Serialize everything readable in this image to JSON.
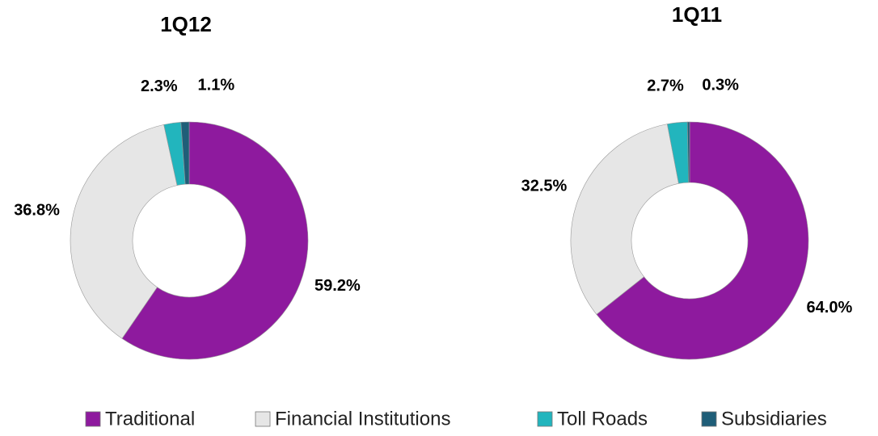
{
  "chart_data": [
    {
      "type": "pie",
      "title": "1Q12",
      "categories": [
        "Traditional",
        "Financial Institutions",
        "Toll Roads",
        "Subsidiaries"
      ],
      "values": [
        59.2,
        36.8,
        2.3,
        1.1
      ],
      "value_labels": [
        "59.2%",
        "36.8%",
        "2.3%",
        "1.1%"
      ],
      "colors": [
        "#8e1a9e",
        "#e6e6e6",
        "#22b5bd",
        "#1f5e78"
      ]
    },
    {
      "type": "pie",
      "title": "1Q11",
      "categories": [
        "Traditional",
        "Financial Institutions",
        "Toll Roads",
        "Subsidiaries"
      ],
      "values": [
        64.0,
        32.5,
        2.7,
        0.3
      ],
      "value_labels": [
        "64.0%",
        "32.5%",
        "2.7%",
        "0.3%"
      ],
      "colors": [
        "#8e1a9e",
        "#e6e6e6",
        "#22b5bd",
        "#1f5e78"
      ]
    }
  ]
}
